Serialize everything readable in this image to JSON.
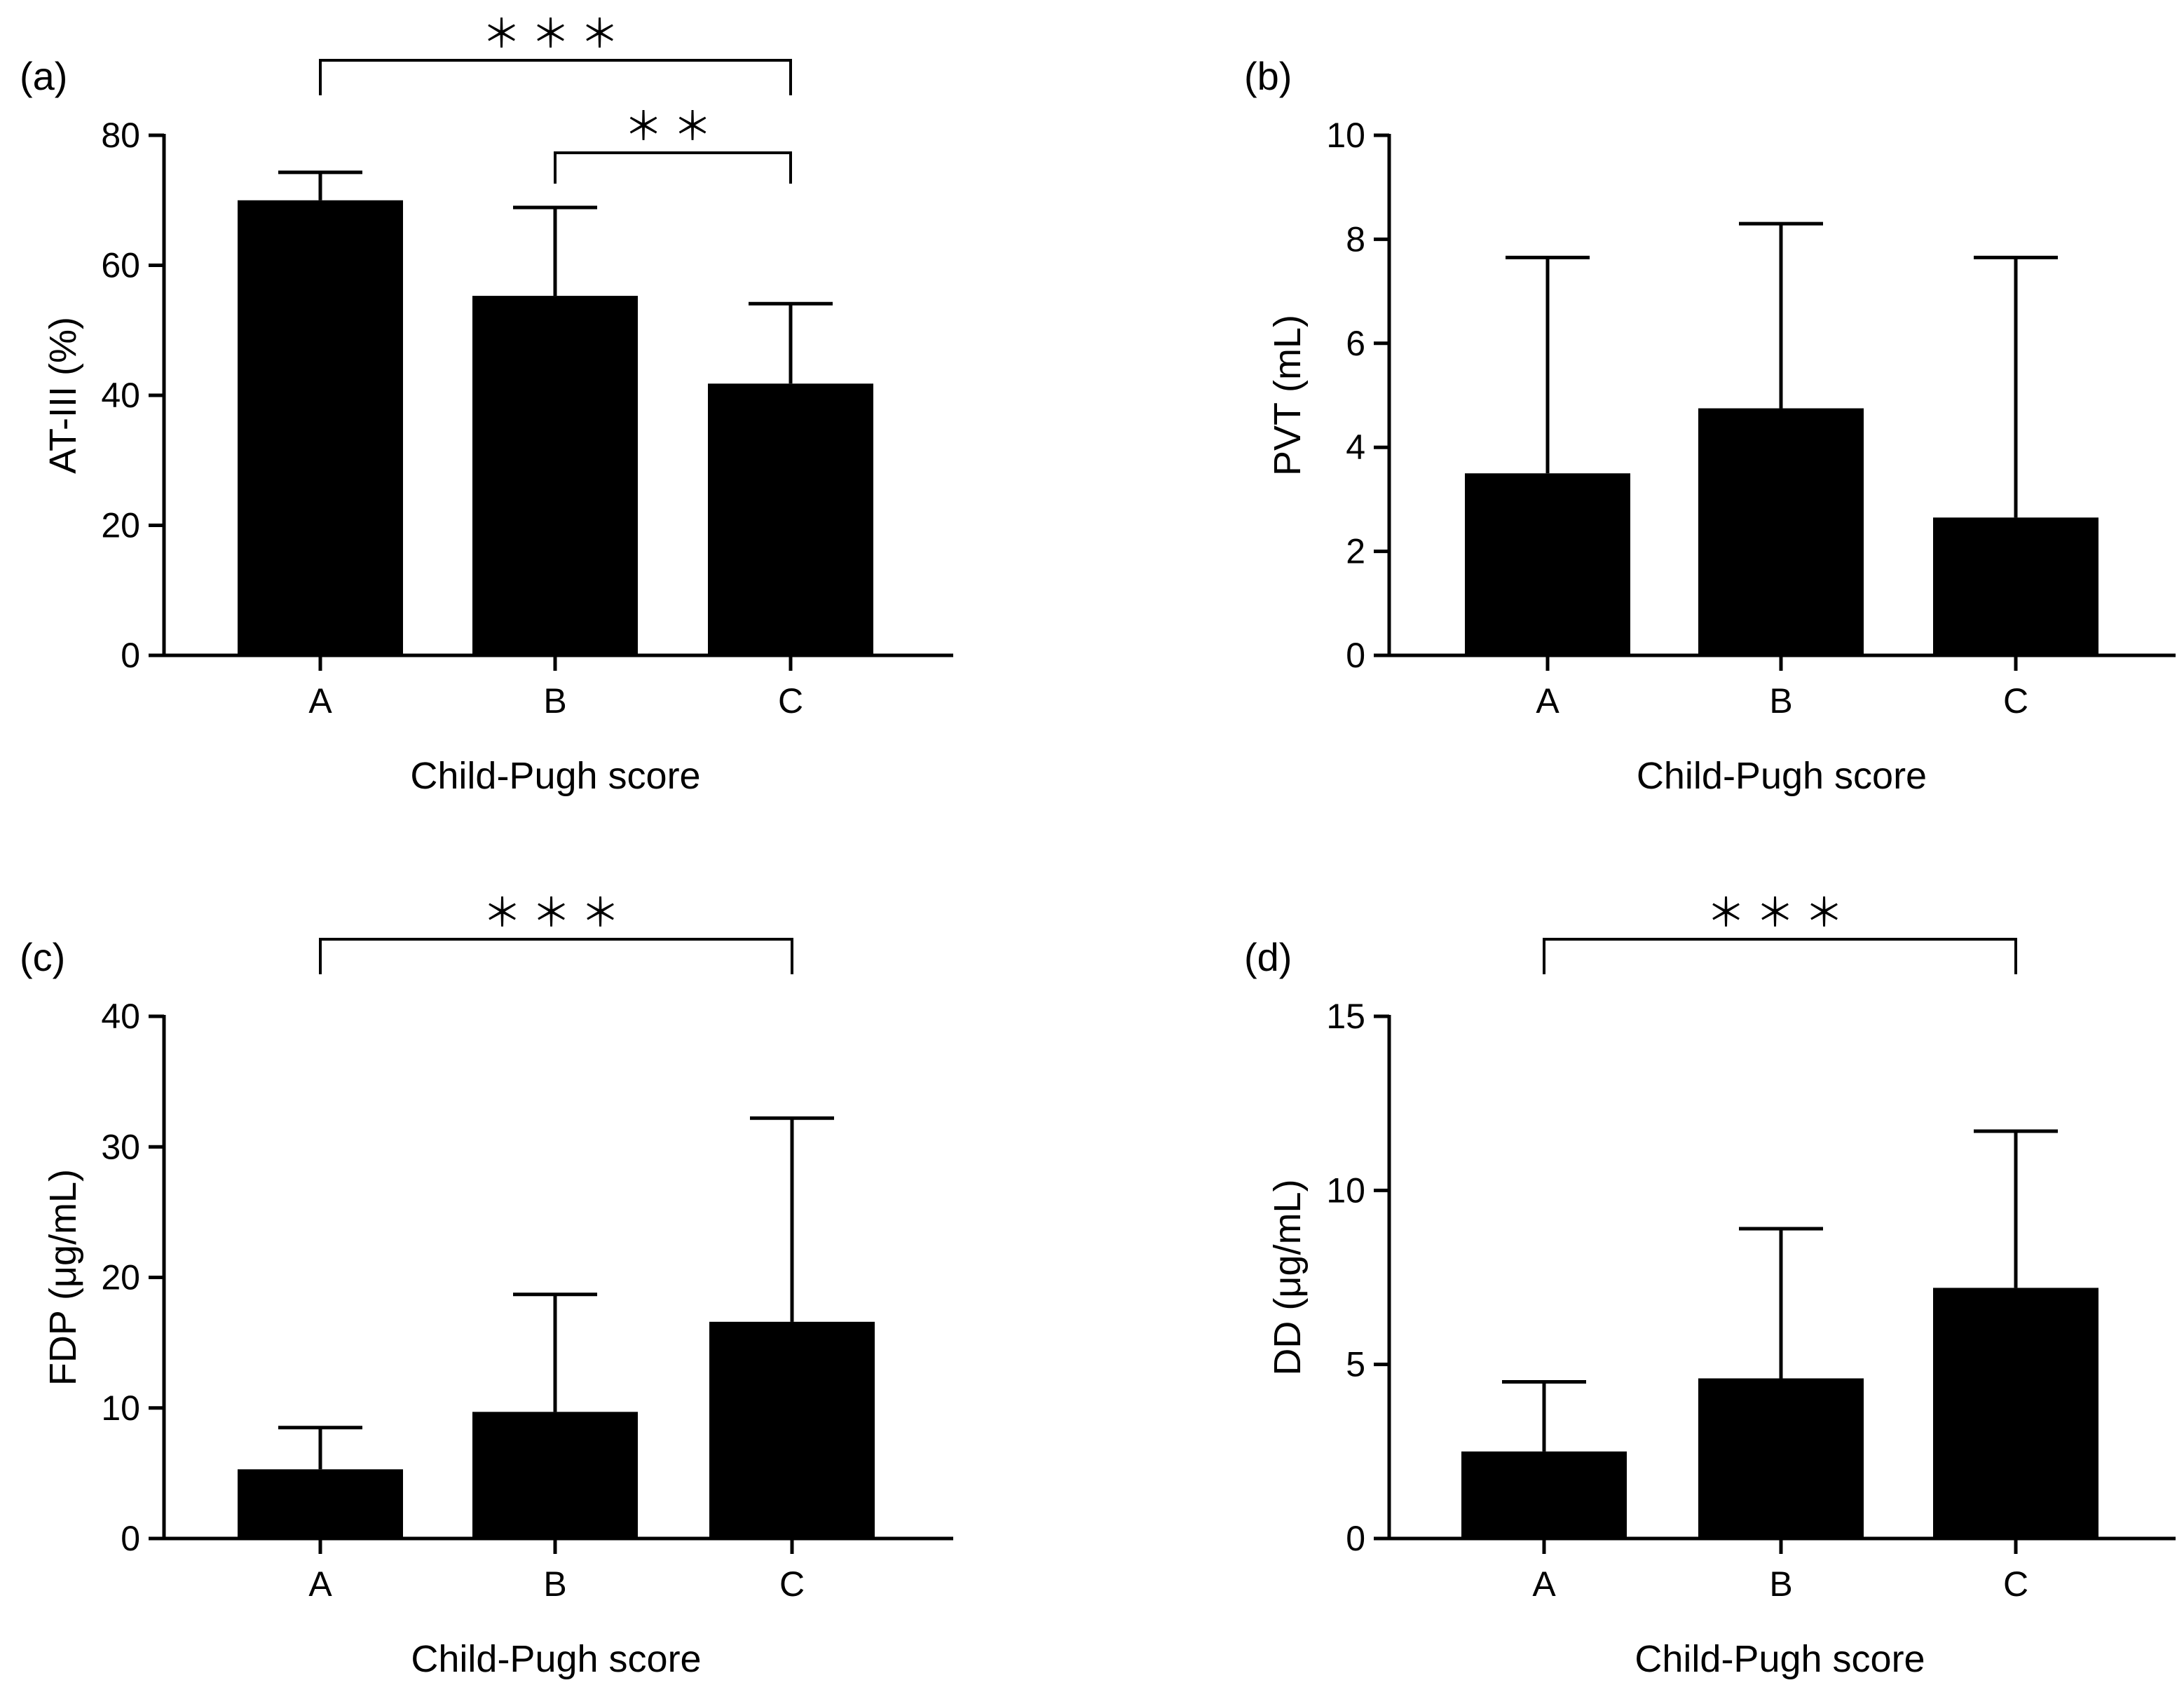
{
  "chart_data": [
    {
      "type": "bar",
      "panel": "(a)",
      "categories": [
        "A",
        "B",
        "C"
      ],
      "values": [
        70,
        55.3,
        41.8
      ],
      "errors": [
        4.3,
        13.6,
        12.3
      ],
      "xlabel": "Child-Pugh score",
      "ylabel": "AT-III (%)",
      "ylim": [
        0,
        80
      ],
      "yticks": [
        0,
        20,
        40,
        60,
        80
      ],
      "significance": [
        {
          "from": 0,
          "to": 2,
          "label": "＊＊＊"
        },
        {
          "from": 1,
          "to": 2,
          "label": "＊＊"
        }
      ],
      "bar_color": "#000000"
    },
    {
      "type": "bar",
      "panel": "(b)",
      "categories": [
        "A",
        "B",
        "C"
      ],
      "values": [
        3.5,
        4.75,
        2.65
      ],
      "errors": [
        4.15,
        3.55,
        5.0
      ],
      "xlabel": "Child-Pugh score",
      "ylabel": "PVT (mL)",
      "ylim": [
        0,
        10
      ],
      "yticks": [
        0,
        2,
        4,
        6,
        8,
        10
      ],
      "significance": [],
      "bar_color": "#000000"
    },
    {
      "type": "bar",
      "panel": "(c)",
      "categories": [
        "A",
        "B",
        "C"
      ],
      "values": [
        5.3,
        9.7,
        16.6
      ],
      "errors": [
        3.2,
        9.0,
        15.6
      ],
      "xlabel": "Child-Pugh score",
      "ylabel": "FDP (μg/mL)",
      "ylim": [
        0,
        40
      ],
      "yticks": [
        0,
        10,
        20,
        30,
        40
      ],
      "significance": [
        {
          "from": 0,
          "to": 2,
          "label": "＊＊＊"
        }
      ],
      "bar_color": "#000000"
    },
    {
      "type": "bar",
      "panel": "(d)",
      "categories": [
        "A",
        "B",
        "C"
      ],
      "values": [
        2.5,
        4.6,
        7.2
      ],
      "errors": [
        2.0,
        4.3,
        4.5
      ],
      "xlabel": "Child-Pugh score",
      "ylabel": "DD (μg/mL)",
      "ylim": [
        0,
        15
      ],
      "yticks": [
        0,
        5,
        10,
        15
      ],
      "significance": [
        {
          "from": 0,
          "to": 2,
          "label": "＊＊＊"
        }
      ],
      "bar_color": "#000000"
    }
  ]
}
